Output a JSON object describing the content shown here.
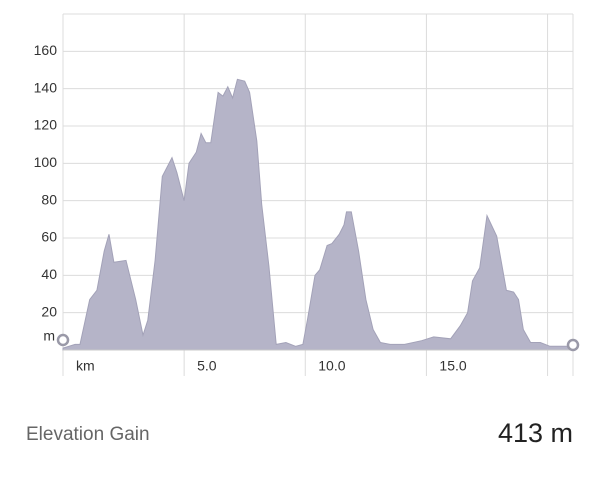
{
  "chart_data": {
    "type": "area",
    "x": [
      0,
      0.5,
      0.7,
      1.1,
      1.4,
      1.7,
      1.9,
      2.1,
      2.6,
      3.0,
      3.3,
      3.5,
      3.8,
      4.1,
      4.5,
      4.7,
      5.0,
      5.2,
      5.5,
      5.7,
      5.9,
      6.1,
      6.4,
      6.6,
      6.8,
      7.0,
      7.2,
      7.5,
      7.7,
      8.0,
      8.2,
      8.5,
      8.8,
      9.2,
      9.6,
      9.9,
      10.1,
      10.4,
      10.6,
      10.9,
      11.1,
      11.4,
      11.6,
      11.7,
      11.9,
      12.2,
      12.5,
      12.8,
      13.1,
      13.5,
      14.1,
      14.8,
      15.3,
      16.0,
      16.4,
      16.7,
      16.9,
      17.2,
      17.5,
      17.9,
      18.3,
      18.6,
      18.8,
      19.0,
      19.3,
      19.7,
      20.1,
      20.5,
      21.0
    ],
    "series": [
      {
        "color": "#b5b4c8",
        "values": [
          1,
          3,
          3,
          27,
          32,
          53,
          62,
          47,
          48,
          27,
          8,
          16,
          48,
          93,
          103,
          95,
          80,
          100,
          106,
          116,
          111,
          111,
          138,
          136,
          141,
          135,
          145,
          144,
          138,
          112,
          78,
          45,
          3,
          4,
          2,
          3,
          17,
          40,
          43,
          56,
          57,
          62,
          67,
          74,
          74,
          53,
          27,
          11,
          4,
          3,
          3,
          5,
          7,
          6,
          13,
          20,
          37,
          44,
          72,
          61,
          32,
          31,
          27,
          11,
          4,
          4,
          2,
          2,
          2
        ]
      }
    ],
    "xlim": [
      0,
      21.05
    ],
    "ylim": [
      0,
      180
    ],
    "xticks": [
      {
        "value": 0,
        "label": "km"
      },
      {
        "value": 5,
        "label": "5.0"
      },
      {
        "value": 10,
        "label": "10.0"
      },
      {
        "value": 15,
        "label": "15.0"
      }
    ],
    "xgrid": [
      0,
      5,
      10,
      15,
      20
    ],
    "yticks": [
      {
        "value": 0,
        "label": "m"
      },
      20,
      40,
      60,
      80,
      100,
      120,
      140,
      160
    ],
    "grid": true,
    "summary_label": "Elevation Gain",
    "summary_value": "413 m"
  }
}
